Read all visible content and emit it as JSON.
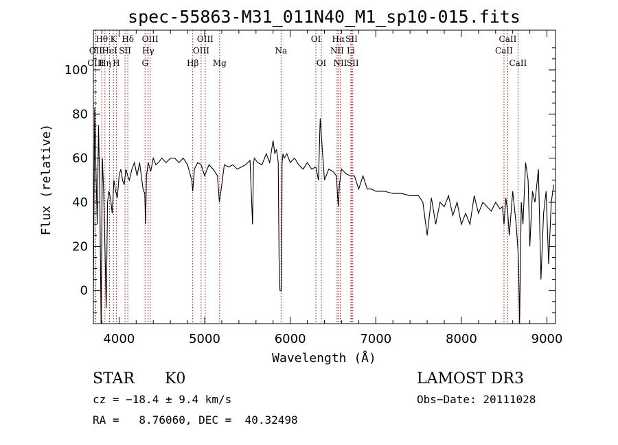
{
  "chart_data": {
    "type": "line",
    "title": "spec-55863-M31_011N40_M1_sp10-015.fits",
    "xlabel": "Wavelength (Å)",
    "ylabel": "Flux (relative)",
    "xlim": [
      3700,
      9100
    ],
    "ylim": [
      -15,
      118
    ],
    "x_ticks": [
      4000,
      5000,
      6000,
      7000,
      8000,
      9000
    ],
    "y_ticks": [
      0,
      20,
      40,
      60,
      80,
      100
    ],
    "grid": false,
    "series": [
      {
        "x": [
          3700,
          3715,
          3730,
          3745,
          3760,
          3775,
          3790,
          3805,
          3820,
          3835,
          3850,
          3865,
          3880,
          3900,
          3920,
          3940,
          3960,
          3980,
          4000,
          4020,
          4040,
          4060,
          4080,
          4100,
          4120,
          4150,
          4180,
          4210,
          4240,
          4260,
          4280,
          4300,
          4310,
          4320,
          4340,
          4370,
          4400,
          4430,
          4460,
          4500,
          4550,
          4600,
          4650,
          4700,
          4750,
          4800,
          4850,
          4861,
          4880,
          4920,
          4960,
          5000,
          5050,
          5100,
          5150,
          5172,
          5190,
          5230,
          5280,
          5330,
          5380,
          5430,
          5480,
          5530,
          5560,
          5570,
          5580,
          5620,
          5670,
          5720,
          5760,
          5800,
          5820,
          5840,
          5860,
          5870,
          5880,
          5890,
          5895,
          5900,
          5905,
          5915,
          5930,
          5960,
          6000,
          6050,
          6100,
          6150,
          6200,
          6250,
          6300,
          6330,
          6350,
          6400,
          6450,
          6500,
          6540,
          6555,
          6563,
          6575,
          6600,
          6650,
          6700,
          6750,
          6800,
          6850,
          6900,
          6950,
          7000,
          7100,
          7200,
          7300,
          7400,
          7500,
          7550,
          7600,
          7650,
          7700,
          7750,
          7800,
          7850,
          7900,
          7950,
          8000,
          8050,
          8100,
          8150,
          8200,
          8250,
          8300,
          8350,
          8400,
          8450,
          8480,
          8498,
          8520,
          8542,
          8560,
          8600,
          8640,
          8662,
          8670,
          8680,
          8700,
          8720,
          8750,
          8780,
          8800,
          8830,
          8860,
          8900,
          8930,
          8960,
          8990,
          9020,
          9050,
          9080
        ],
        "y": [
          0,
          83,
          55,
          30,
          75,
          45,
          -15,
          60,
          45,
          20,
          -8,
          40,
          45,
          42,
          35,
          50,
          45,
          42,
          52,
          55,
          50,
          48,
          55,
          52,
          50,
          55,
          58,
          52,
          58,
          52,
          46,
          44,
          30,
          52,
          58,
          54,
          60,
          57,
          58,
          60,
          58,
          60,
          60,
          58,
          60,
          57,
          50,
          45,
          55,
          58,
          57,
          52,
          57,
          55,
          52,
          40,
          45,
          57,
          56,
          57,
          55,
          56,
          57,
          59,
          30,
          57,
          60,
          58,
          57,
          62,
          58,
          68,
          62,
          64,
          58,
          15,
          0,
          0,
          0,
          12,
          58,
          62,
          60,
          62,
          58,
          60,
          57,
          55,
          58,
          55,
          56,
          50,
          78,
          50,
          55,
          54,
          52,
          42,
          38,
          48,
          55,
          53,
          52,
          52,
          46,
          52,
          46,
          46,
          45,
          45,
          44,
          44,
          43,
          43,
          40,
          25,
          42,
          30,
          40,
          38,
          43,
          34,
          40,
          30,
          35,
          30,
          43,
          35,
          40,
          38,
          36,
          40,
          37,
          38,
          30,
          42,
          35,
          25,
          45,
          30,
          18,
          10,
          -15,
          40,
          30,
          58,
          50,
          20,
          45,
          40,
          55,
          5,
          35,
          45,
          12,
          40,
          48
        ]
      }
    ],
    "spectral_lines": [
      {
        "label": "Hθ",
        "wavelength": 3798,
        "row": 1
      },
      {
        "label": "OII",
        "wavelength": 3727,
        "row": 2
      },
      {
        "label": "OIII",
        "wavelength": 3727,
        "row": 3
      },
      {
        "label": "HeI",
        "wavelength": 3889,
        "row": 2
      },
      {
        "label": "Hη",
        "wavelength": 3835,
        "row": 3
      },
      {
        "label": "K",
        "wavelength": 3934,
        "row": 1
      },
      {
        "label": "SII",
        "wavelength": 4070,
        "row": 2
      },
      {
        "label": "H",
        "wavelength": 3968,
        "row": 3
      },
      {
        "label": "Hδ",
        "wavelength": 4102,
        "row": 1
      },
      {
        "label": "OIII",
        "wavelength": 4363,
        "row": 1
      },
      {
        "label": "Hγ",
        "wavelength": 4340,
        "row": 2
      },
      {
        "label": "G",
        "wavelength": 4304,
        "row": 3
      },
      {
        "label": "Hβ",
        "wavelength": 4861,
        "row": 3
      },
      {
        "label": "OIII",
        "wavelength": 5007,
        "row": 1
      },
      {
        "label": "OIII",
        "wavelength": 4959,
        "row": 2
      },
      {
        "label": "Mg",
        "wavelength": 5175,
        "row": 3
      },
      {
        "label": "Na",
        "wavelength": 5893,
        "row": 2
      },
      {
        "label": "OI",
        "wavelength": 6300,
        "row": 1
      },
      {
        "label": "OI",
        "wavelength": 6364,
        "row": 3
      },
      {
        "label": "Hα",
        "wavelength": 6563,
        "row": 1
      },
      {
        "label": "NII",
        "wavelength": 6548,
        "row": 2
      },
      {
        "label": "NII",
        "wavelength": 6584,
        "row": 3
      },
      {
        "label": "SII",
        "wavelength": 6717,
        "row": 1
      },
      {
        "label": "Li",
        "wavelength": 6708,
        "row": 2
      },
      {
        "label": "SII",
        "wavelength": 6731,
        "row": 3
      },
      {
        "label": "CaII",
        "wavelength": 8542,
        "row": 1
      },
      {
        "label": "CaII",
        "wavelength": 8498,
        "row": 2
      },
      {
        "label": "CaII",
        "wavelength": 8662,
        "row": 3
      }
    ]
  },
  "info": {
    "class": "STAR",
    "subclass": "K0",
    "survey": "LAMOST DR3",
    "cz": "cz = −18.4 ± 9.4 km/s",
    "obs_date": "Obs−Date: 20111028",
    "coords": "RA =   8.76060, DEC =  40.32498"
  }
}
